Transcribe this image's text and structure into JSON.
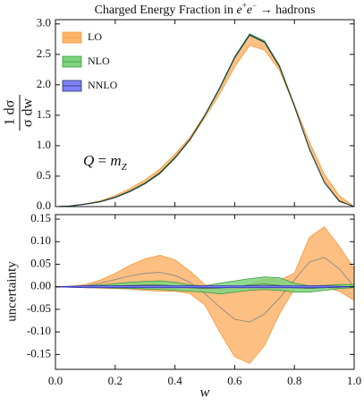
{
  "chart_data": [
    {
      "type": "band",
      "title": [
        "Charged Energy Fraction in ",
        "e",
        "+",
        "e",
        "−",
        " → hadrons"
      ],
      "ylabel_numerator": "1 dσ",
      "ylabel_denominator": "σ dw",
      "annotation": [
        "Q",
        " = ",
        "m",
        "Z"
      ],
      "legend": "upper left",
      "show_xtick_labels": false,
      "x": [
        0,
        0.05,
        0.1,
        0.15,
        0.2,
        0.25,
        0.3,
        0.35,
        0.4,
        0.45,
        0.5,
        0.55,
        0.6,
        0.65,
        0.7,
        0.75,
        0.8,
        0.85,
        0.9,
        0.95,
        1
      ],
      "xlim": [
        0,
        1
      ],
      "xticks": [
        0,
        0.2,
        0.4,
        0.6,
        0.8,
        1
      ],
      "ylim": [
        0,
        3.07
      ],
      "yticks": [
        {
          "value": 0,
          "label": "0.0"
        },
        0.5,
        {
          "value": 1,
          "label": "1.0"
        },
        1.5,
        {
          "value": 2,
          "label": "2.0"
        },
        2.5,
        {
          "value": 3,
          "label": "3.0"
        }
      ],
      "series": [
        {
          "name": "LO",
          "color": "#fdb46c",
          "edge": "#f59a3c",
          "lower": [
            0,
            0.009,
            0.038,
            0.077,
            0.146,
            0.245,
            0.372,
            0.54,
            0.79,
            1.085,
            1.46,
            1.85,
            2.295,
            2.65,
            2.57,
            2.24,
            1.645,
            0.95,
            0.4,
            0.08,
            0
          ],
          "upper": [
            0,
            0.011,
            0.045,
            0.095,
            0.18,
            0.298,
            0.442,
            0.62,
            0.86,
            1.135,
            1.505,
            1.945,
            2.445,
            2.825,
            2.718,
            2.315,
            1.68,
            1.06,
            0.533,
            0.18,
            0
          ]
        },
        {
          "name": "NLO",
          "color": "#7fd47f",
          "edge": "#3a9a3a",
          "lower": [
            0,
            0.01,
            0.039,
            0.078,
            0.147,
            0.246,
            0.375,
            0.544,
            0.792,
            1.09,
            1.488,
            1.934,
            2.438,
            2.812,
            2.694,
            2.292,
            1.638,
            0.938,
            0.392,
            0.086,
            0
          ],
          "upper": [
            0,
            0.011,
            0.042,
            0.084,
            0.157,
            0.26,
            0.392,
            0.563,
            0.81,
            1.104,
            1.502,
            1.958,
            2.463,
            2.838,
            2.722,
            2.32,
            1.658,
            0.952,
            0.403,
            0.095,
            0
          ]
        },
        {
          "name": "NNLO",
          "color": "#8080ff",
          "edge": "#203a50",
          "lower": [
            0,
            0.008,
            0.037,
            0.077,
            0.147,
            0.247,
            0.377,
            0.547,
            0.797,
            1.097,
            1.497,
            1.947,
            2.447,
            2.817,
            2.697,
            2.297,
            1.647,
            0.947,
            0.397,
            0.087,
            0
          ],
          "upper": [
            0,
            0.012,
            0.043,
            0.083,
            0.153,
            0.253,
            0.383,
            0.553,
            0.803,
            1.103,
            1.503,
            1.953,
            2.453,
            2.823,
            2.703,
            2.303,
            1.653,
            0.953,
            0.403,
            0.093,
            0
          ]
        }
      ]
    },
    {
      "type": "band",
      "ylabel": "uncertainty",
      "xlabel": "w",
      "show_xtick_labels": true,
      "x": [
        0,
        0.05,
        0.1,
        0.15,
        0.2,
        0.25,
        0.3,
        0.35,
        0.4,
        0.45,
        0.5,
        0.55,
        0.6,
        0.65,
        0.7,
        0.75,
        0.8,
        0.85,
        0.9,
        0.95,
        1
      ],
      "xlim": [
        0,
        1
      ],
      "xticks": [
        {
          "value": 0,
          "label": "0.0"
        },
        0.2,
        0.4,
        0.6,
        0.8,
        {
          "value": 1,
          "label": "1.0"
        }
      ],
      "ylim": [
        -0.183,
        0.16
      ],
      "yticks": [
        0.15,
        {
          "value": 0.1,
          "label": "0.10"
        },
        0.05,
        {
          "value": 0,
          "label": "0.00"
        },
        -0.05,
        {
          "value": -0.1,
          "label": "-0.10"
        },
        -0.15
      ],
      "series": [
        {
          "color": "#fdb46c",
          "edge": "#f59a3c",
          "line_color": "#8a8a8a",
          "values": [
            0,
            0,
            0.002,
            0.008,
            0.016,
            0.024,
            0.03,
            0.032,
            0.025,
            0.01,
            -0.015,
            -0.045,
            -0.072,
            -0.078,
            -0.06,
            -0.025,
            0.015,
            0.055,
            0.065,
            0.04,
            0
          ],
          "lower": [
            0,
            -0.001,
            -0.002,
            -0.003,
            -0.004,
            -0.005,
            -0.008,
            -0.01,
            -0.01,
            -0.015,
            -0.04,
            -0.1,
            -0.155,
            -0.17,
            -0.13,
            -0.06,
            -0.005,
            0,
            0,
            -0.01,
            -0.03
          ],
          "upper": [
            0,
            0.001,
            0.005,
            0.015,
            0.03,
            0.048,
            0.062,
            0.07,
            0.06,
            0.035,
            0.005,
            -0.005,
            -0.005,
            0.005,
            0.018,
            0.015,
            0.03,
            0.11,
            0.133,
            0.09,
            0.04
          ]
        },
        {
          "color": "#7fd47f",
          "edge": "#3a9a3a",
          "line_color": "#4f7f4f",
          "values": [
            0,
            0,
            0,
            0.001,
            0.002,
            0.003,
            0.004,
            0.004,
            0.002,
            -0.002,
            -0.004,
            -0.003,
            0,
            0.004,
            0.006,
            0.003,
            -0.002,
            -0.004,
            -0.002,
            0,
            0
          ],
          "lower": [
            0,
            0,
            -0.001,
            -0.002,
            -0.003,
            -0.004,
            -0.005,
            -0.006,
            -0.008,
            -0.01,
            -0.012,
            -0.016,
            -0.012,
            -0.008,
            -0.006,
            -0.008,
            -0.012,
            -0.012,
            -0.008,
            -0.004,
            -0.002
          ],
          "upper": [
            0,
            0.001,
            0.002,
            0.004,
            0.007,
            0.01,
            0.012,
            0.013,
            0.01,
            0.004,
            0.002,
            0.008,
            0.013,
            0.018,
            0.022,
            0.02,
            0.008,
            0.002,
            0.003,
            0.005,
            0.005
          ]
        },
        {
          "color": "#8080ff",
          "edge": "#3030c0",
          "lower": [
            0,
            -0.001,
            -0.002,
            -0.002,
            -0.002,
            -0.002,
            -0.002,
            -0.002,
            -0.002,
            -0.002,
            -0.002,
            -0.002,
            -0.002,
            -0.002,
            -0.002,
            -0.002,
            -0.002,
            -0.002,
            -0.002,
            -0.001,
            0
          ],
          "upper": [
            0,
            0.001,
            0.002,
            0.002,
            0.002,
            0.002,
            0.002,
            0.002,
            0.002,
            0.002,
            0.002,
            0.002,
            0.002,
            0.002,
            0.002,
            0.002,
            0.002,
            0.002,
            0.002,
            0.001,
            0
          ]
        }
      ]
    }
  ]
}
